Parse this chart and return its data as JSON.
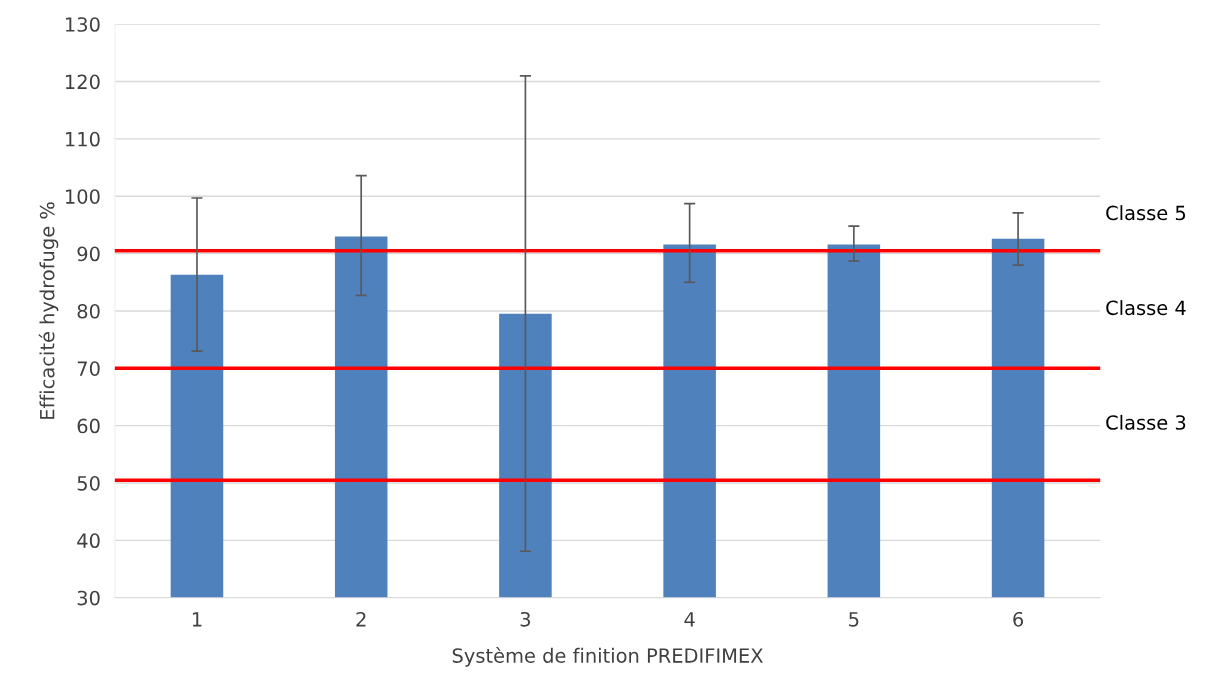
{
  "chart_data": {
    "type": "bar",
    "xlabel": "Système de finition PREDIFIMEX",
    "ylabel": "Efficacité hydrofuge %",
    "categories": [
      "1",
      "2",
      "3",
      "4",
      "5",
      "6"
    ],
    "values": [
      86.3,
      93.0,
      79.5,
      91.6,
      91.6,
      92.6
    ],
    "errors": [
      [
        73.0,
        99.7
      ],
      [
        82.7,
        103.6
      ],
      [
        38.1,
        121.0
      ],
      [
        85.0,
        98.7
      ],
      [
        88.7,
        94.8
      ],
      [
        88.0,
        97.1
      ]
    ],
    "color": "#4f81bd",
    "ylim": [
      30,
      130
    ],
    "yticks": [
      30,
      40,
      50,
      60,
      70,
      80,
      90,
      100,
      110,
      120,
      130
    ],
    "grid": "y",
    "ref_lines": [
      {
        "axis": "y",
        "value": 90.5,
        "color": "#ff0000"
      },
      {
        "axis": "y",
        "value": 70,
        "color": "#ff0000"
      },
      {
        "axis": "y",
        "value": 50.5,
        "color": "#ff0000"
      }
    ],
    "annotations": [
      "Classe 5",
      "Classe 4",
      "Classe 3"
    ]
  }
}
